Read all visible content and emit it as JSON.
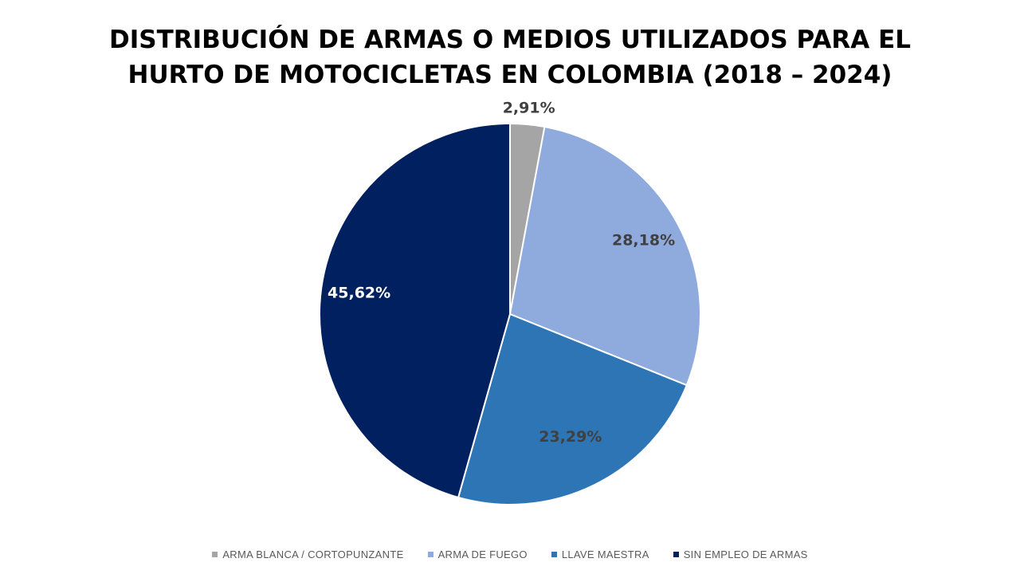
{
  "chart_data": {
    "type": "pie",
    "title_lines": [
      "DISTRIBUCIÓN DE ARMAS O MEDIOS UTILIZADOS PARA EL",
      "HURTO DE MOTOCICLETAS EN COLOMBIA (2018 – 2024)"
    ],
    "categories": [
      "ARMA BLANCA / CORTOPUNZANTE",
      "ARMA DE FUEGO",
      "LLAVE MAESTRA",
      "SIN EMPLEO DE ARMAS"
    ],
    "values": [
      2.91,
      28.18,
      23.29,
      45.62
    ],
    "data_labels": [
      "2,91%",
      "28,18%",
      "23,29%",
      "45,62%"
    ],
    "colors": [
      "#a5a5a5",
      "#8faadc",
      "#2e75b6",
      "#002060"
    ],
    "label_colors": [
      "#404040",
      "#404040",
      "#404040",
      "#ffffff"
    ],
    "legend_position": "bottom"
  }
}
